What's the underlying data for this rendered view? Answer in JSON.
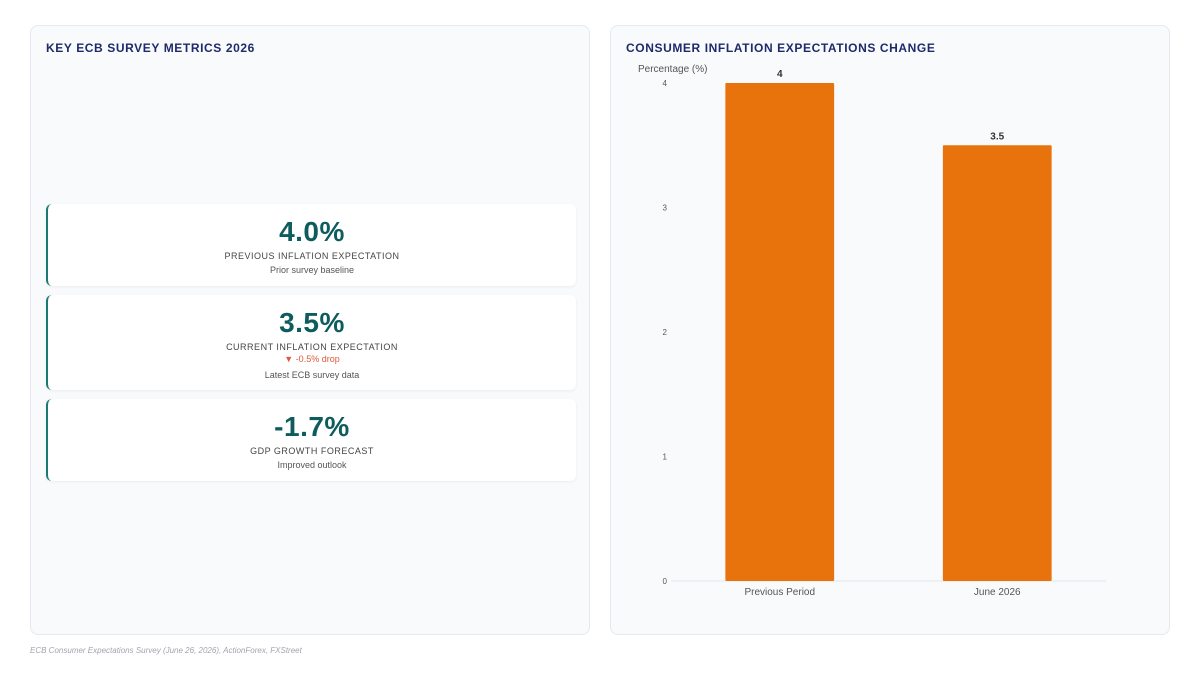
{
  "left_panel": {
    "title": "KEY ECB SURVEY METRICS 2026",
    "metrics": [
      {
        "value": "4.0%",
        "label": "PREVIOUS INFLATION EXPECTATION",
        "change": "",
        "sub": "Prior survey baseline"
      },
      {
        "value": "3.5%",
        "label": "CURRENT INFLATION EXPECTATION",
        "change": "▼ -0.5% drop",
        "sub": "Latest ECB survey data"
      },
      {
        "value": "-1.7%",
        "label": "GDP GROWTH FORECAST",
        "change": "",
        "sub": "Improved outlook"
      }
    ]
  },
  "right_panel": {
    "title": "CONSUMER INFLATION EXPECTATIONS CHANGE"
  },
  "chart_data": {
    "type": "bar",
    "title": "CONSUMER INFLATION EXPECTATIONS CHANGE",
    "xlabel": "",
    "ylabel": "Percentage (%)",
    "categories": [
      "Previous Period",
      "June 2026"
    ],
    "values": [
      4,
      3.5
    ],
    "data_labels": [
      "4",
      "3.5"
    ],
    "ylim": [
      0,
      4
    ],
    "yticks": [
      0,
      1,
      2,
      3,
      4
    ],
    "grid": false,
    "bar_color": "#e8720c"
  },
  "footer": {
    "source": "ECB Consumer Expectations Survey (June 26, 2026), ActionForex, FXStreet"
  }
}
